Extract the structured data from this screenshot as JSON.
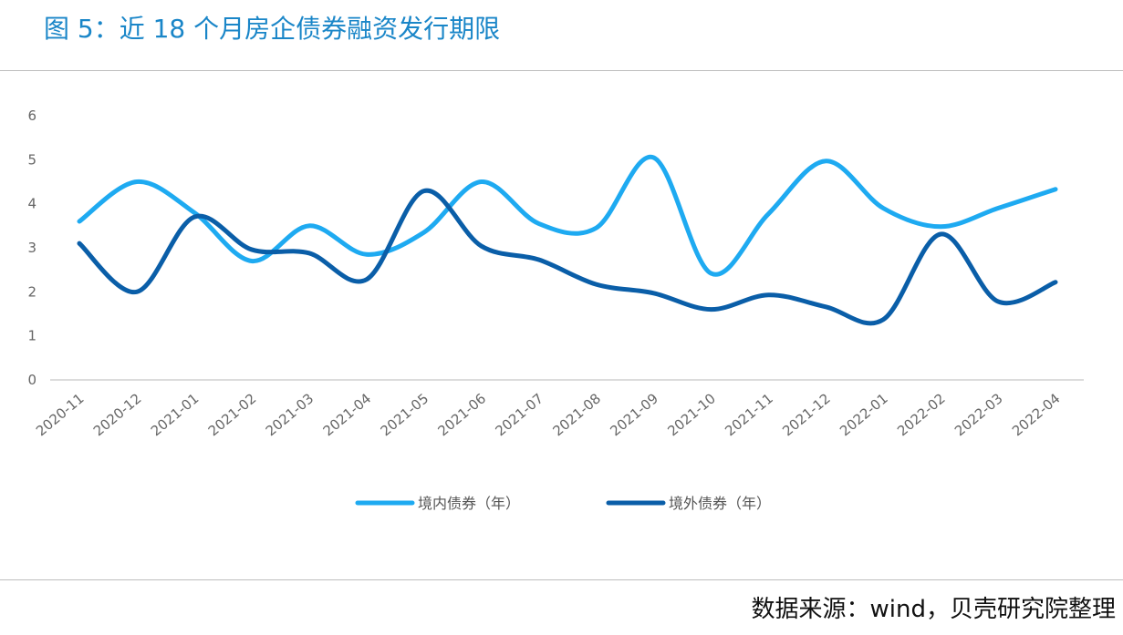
{
  "title": "图 5：近 18 个月房企债券融资发行期限",
  "source": "数据来源：wind，贝壳研究院整理",
  "chart_data": {
    "type": "line",
    "title": "",
    "xlabel": "",
    "ylabel": "",
    "ylim": [
      0,
      6
    ],
    "yticks": [
      "0",
      "1",
      "2",
      "3",
      "4",
      "5",
      "6"
    ],
    "grid": false,
    "legend_position": "bottom",
    "smooth": true,
    "categories": [
      "2020-11",
      "2020-12",
      "2021-01",
      "2021-02",
      "2021-03",
      "2021-04",
      "2021-05",
      "2021-06",
      "2021-07",
      "2021-08",
      "2021-09",
      "2021-10",
      "2021-11",
      "2021-12",
      "2022-01",
      "2022-02",
      "2022-03",
      "2022-04"
    ],
    "series": [
      {
        "name": "境内债券（年）",
        "color": "#1eaaf1",
        "values": [
          3.6,
          4.5,
          3.8,
          2.7,
          3.5,
          2.85,
          3.35,
          4.5,
          3.55,
          3.45,
          5.05,
          2.42,
          3.77,
          4.97,
          3.9,
          3.48,
          3.9,
          4.33
        ]
      },
      {
        "name": "境外债券（年）",
        "color": "#0a5ea8",
        "values": [
          3.1,
          2.0,
          3.7,
          2.96,
          2.88,
          2.28,
          4.29,
          3.04,
          2.73,
          2.17,
          1.97,
          1.6,
          1.93,
          1.66,
          1.37,
          3.31,
          1.78,
          2.22
        ]
      }
    ]
  }
}
